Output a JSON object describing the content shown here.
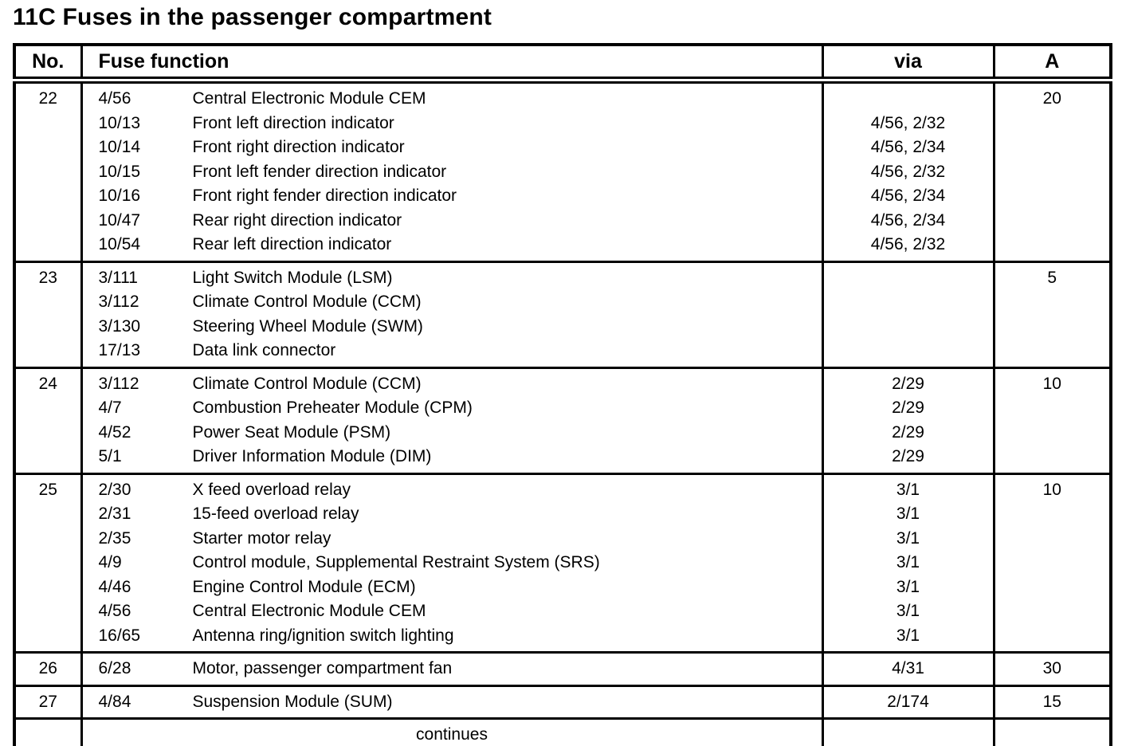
{
  "title": "11C Fuses in the passenger compartment",
  "colors": {
    "text": "#000000",
    "background": "#ffffff",
    "border": "#000000"
  },
  "table": {
    "columns": [
      {
        "key": "no",
        "label": "No."
      },
      {
        "key": "function",
        "label": "Fuse function"
      },
      {
        "key": "via",
        "label": "via"
      },
      {
        "key": "amp",
        "label": "A"
      }
    ],
    "rows": [
      {
        "no": "22",
        "amp": "20",
        "lines": [
          {
            "code": "4/56",
            "desc": "Central Electronic Module CEM",
            "via": ""
          },
          {
            "code": "10/13",
            "desc": "Front left direction indicator",
            "via": "4/56, 2/32"
          },
          {
            "code": "10/14",
            "desc": "Front right direction indicator",
            "via": "4/56, 2/34"
          },
          {
            "code": "10/15",
            "desc": "Front left fender direction indicator",
            "via": "4/56, 2/32"
          },
          {
            "code": "10/16",
            "desc": "Front right fender direction indicator",
            "via": "4/56, 2/34"
          },
          {
            "code": "10/47",
            "desc": "Rear right direction indicator",
            "via": "4/56, 2/34"
          },
          {
            "code": "10/54",
            "desc": "Rear left direction indicator",
            "via": "4/56, 2/32"
          }
        ]
      },
      {
        "no": "23",
        "amp": "5",
        "lines": [
          {
            "code": "3/111",
            "desc": "Light Switch Module (LSM)",
            "via": ""
          },
          {
            "code": "3/112",
            "desc": "Climate Control Module (CCM)",
            "via": ""
          },
          {
            "code": "3/130",
            "desc": "Steering Wheel Module (SWM)",
            "via": ""
          },
          {
            "code": "17/13",
            "desc": "Data link connector",
            "via": ""
          }
        ]
      },
      {
        "no": "24",
        "amp": "10",
        "lines": [
          {
            "code": "3/112",
            "desc": "Climate Control Module (CCM)",
            "via": "2/29"
          },
          {
            "code": "4/7",
            "desc": "Combustion Preheater Module (CPM)",
            "via": "2/29"
          },
          {
            "code": "4/52",
            "desc": "Power Seat Module (PSM)",
            "via": "2/29"
          },
          {
            "code": "5/1",
            "desc": "Driver Information Module (DIM)",
            "via": "2/29"
          }
        ]
      },
      {
        "no": "25",
        "amp": "10",
        "lines": [
          {
            "code": "2/30",
            "desc": "X feed overload relay",
            "via": "3/1"
          },
          {
            "code": "2/31",
            "desc": "15-feed overload relay",
            "via": "3/1"
          },
          {
            "code": "2/35",
            "desc": "Starter motor relay",
            "via": "3/1"
          },
          {
            "code": "4/9",
            "desc": "Control module, Supplemental Restraint System (SRS)",
            "via": "3/1"
          },
          {
            "code": "4/46",
            "desc": "Engine Control Module (ECM)",
            "via": "3/1"
          },
          {
            "code": "4/56",
            "desc": "Central Electronic Module CEM",
            "via": "3/1"
          },
          {
            "code": "16/65",
            "desc": "Antenna ring/ignition switch lighting",
            "via": "3/1"
          }
        ]
      },
      {
        "no": "26",
        "amp": "30",
        "lines": [
          {
            "code": "6/28",
            "desc": "Motor, passenger compartment fan",
            "via": "4/31"
          }
        ]
      },
      {
        "no": "27",
        "amp": "15",
        "lines": [
          {
            "code": "4/84",
            "desc": "Suspension Module (SUM)",
            "via": "2/174"
          }
        ]
      }
    ],
    "footer": "continues"
  }
}
